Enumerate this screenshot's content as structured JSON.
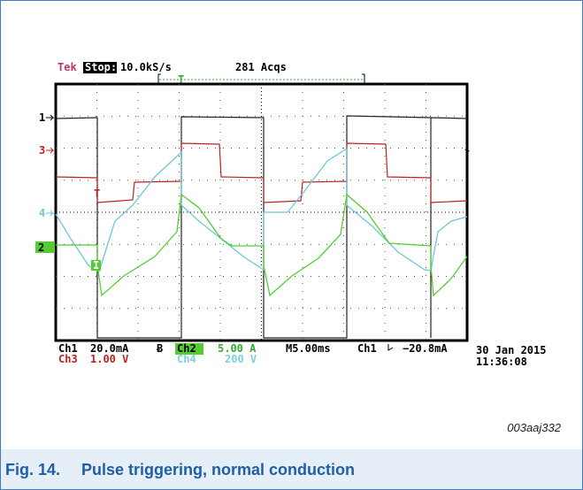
{
  "scope": {
    "status": {
      "brand": "Tek",
      "state": "Stop:",
      "sample_rate": "10.0kS/s",
      "acquisitions": "281 Acqs",
      "trigger_marker": "T"
    },
    "channel_markers": [
      "1",
      "3",
      "4",
      "2"
    ],
    "markers": {
      "ch3_trigger": "T",
      "cursor": "I"
    },
    "readout": {
      "ch1_label": "Ch1",
      "ch1_scale": "20.0mA",
      "ch2_label": "Ch2",
      "ch2_scale": "5.00 A",
      "ch3_label": "Ch3",
      "ch3_scale": "1.00 V",
      "ch4_label": "Ch4",
      "ch4_scale": "200 V",
      "timebase": "M5.00ms",
      "trigger_source": "Ch1",
      "trigger_level": "−20.8mA",
      "date": "30 Jan 2015",
      "time": "11:36:08"
    }
  },
  "figure": {
    "id": "003aaj332",
    "number": "Fig. 14.",
    "caption": "Pulse triggering, normal conduction"
  }
}
